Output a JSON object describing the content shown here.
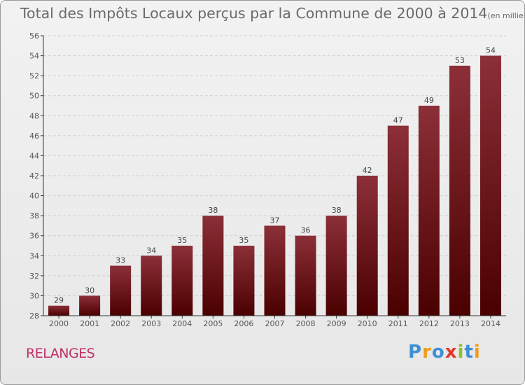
{
  "title": {
    "main": "Total des Impôts Locaux perçus par la Commune de 2000 à 2014",
    "unit": "(en milliers d'€)"
  },
  "commune": "RELANGES",
  "logo": {
    "text": "Proxiti",
    "letters": [
      {
        "ch": "P",
        "color": "#3d8fd4"
      },
      {
        "ch": "r",
        "color": "#f29a1a"
      },
      {
        "ch": "o",
        "color": "#3d8fd4"
      },
      {
        "ch": "x",
        "color": "#e0392b"
      },
      {
        "ch": "i",
        "color": "#8dbf2c"
      },
      {
        "ch": "t",
        "color": "#3d8fd4"
      },
      {
        "ch": "i",
        "color": "#f29a1a"
      }
    ]
  },
  "colors": {
    "bar_top": "#8c2f38",
    "bar_bottom": "#4a0000",
    "grid": "#cfcfcf",
    "axis": "#333333"
  },
  "chart_data": {
    "type": "bar",
    "title": "Total des Impôts Locaux perçus par la Commune de 2000 à 2014",
    "categories": [
      "2000",
      "2001",
      "2002",
      "2003",
      "2004",
      "2005",
      "2006",
      "2007",
      "2008",
      "2009",
      "2010",
      "2011",
      "2012",
      "2013",
      "2014"
    ],
    "values": [
      29,
      30,
      33,
      34,
      35,
      38,
      35,
      37,
      36,
      38,
      42,
      47,
      49,
      53,
      54
    ],
    "ylim": [
      28,
      56
    ],
    "yticks": [
      28,
      30,
      32,
      34,
      36,
      38,
      40,
      42,
      44,
      46,
      48,
      50,
      52,
      54,
      56
    ],
    "grid": true,
    "xlabel": "",
    "ylabel": ""
  }
}
